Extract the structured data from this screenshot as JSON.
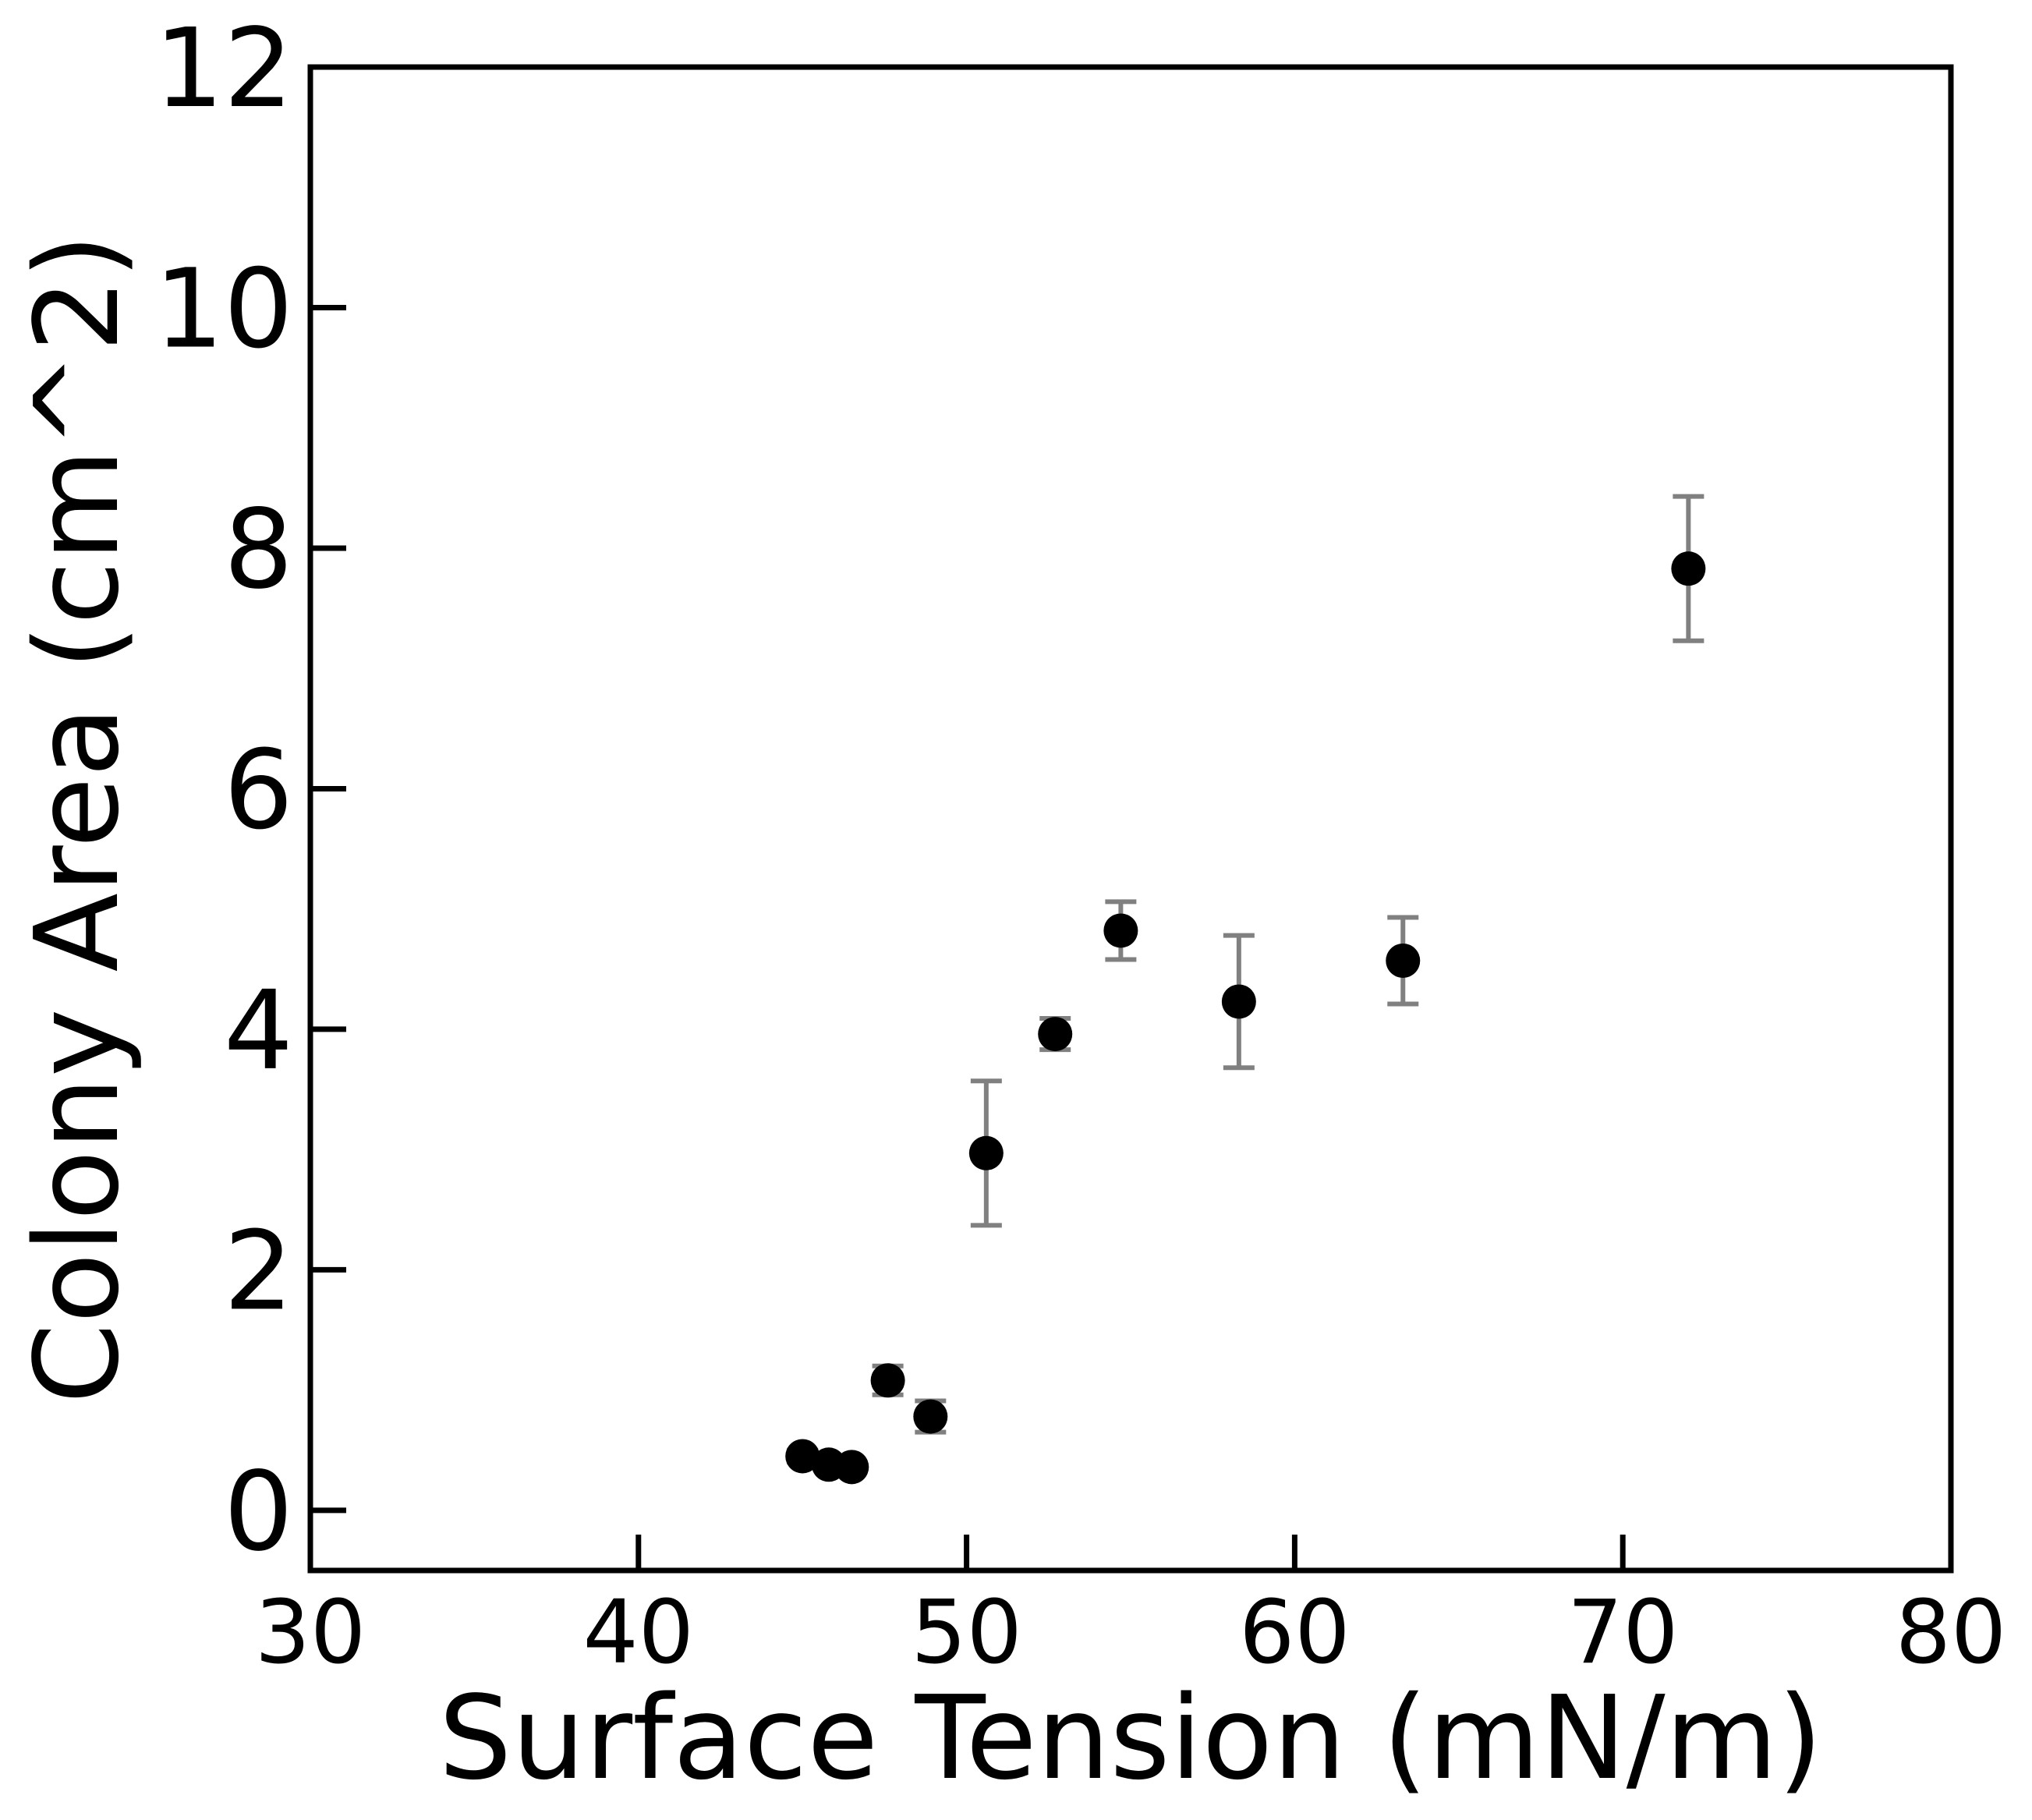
{
  "chart_data": {
    "type": "scatter",
    "xlabel": "Surface Tension (mN/m)",
    "ylabel": "Colony Area (cm^2)",
    "xlim": [
      30,
      80
    ],
    "ylim": [
      -0.5,
      12
    ],
    "xticks": [
      30,
      40,
      50,
      60,
      70,
      80
    ],
    "yticks": [
      0,
      2,
      4,
      6,
      8,
      10,
      12
    ],
    "grid": false,
    "legend": "none",
    "marker_color": "#000000",
    "errorbar_color": "#808080",
    "points": [
      {
        "x": 45.0,
        "y": 0.45,
        "err": 0.05
      },
      {
        "x": 45.8,
        "y": 0.38,
        "err": 0.04
      },
      {
        "x": 46.5,
        "y": 0.36,
        "err": 0.04
      },
      {
        "x": 47.6,
        "y": 1.08,
        "err": 0.12
      },
      {
        "x": 48.9,
        "y": 0.78,
        "err": 0.13
      },
      {
        "x": 50.6,
        "y": 2.97,
        "err": 0.6
      },
      {
        "x": 52.7,
        "y": 3.96,
        "err": 0.13
      },
      {
        "x": 54.7,
        "y": 4.82,
        "err": 0.24
      },
      {
        "x": 58.3,
        "y": 4.23,
        "err": 0.55
      },
      {
        "x": 63.3,
        "y": 4.57,
        "err": 0.36
      },
      {
        "x": 72.0,
        "y": 7.83,
        "err": 0.6
      }
    ]
  }
}
